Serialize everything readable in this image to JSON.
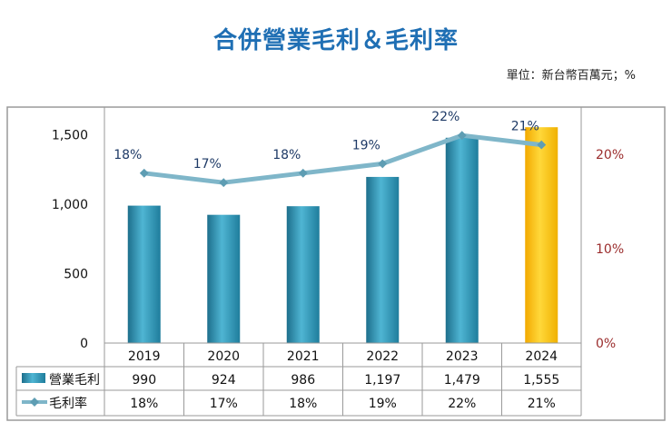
{
  "title": "合併營業毛利＆毛利率",
  "unit": "單位：新台幣百萬元；%",
  "chart_data": {
    "type": "bar",
    "categories": [
      "2019",
      "2020",
      "2021",
      "2022",
      "2023",
      "2024"
    ],
    "series": [
      {
        "name": "營業毛利",
        "axis": "left",
        "values": [
          990,
          924,
          986,
          1197,
          1479,
          1555
        ],
        "display": [
          "990",
          "924",
          "986",
          "1,197",
          "1,479",
          "1,555"
        ],
        "color": "#2a8fb0",
        "highlight_color": "#ffc000",
        "highlight_index": 5
      },
      {
        "name": "毛利率",
        "axis": "right",
        "type": "line",
        "values": [
          18,
          17,
          18,
          19,
          22,
          21
        ],
        "display": [
          "18%",
          "17%",
          "18%",
          "19%",
          "22%",
          "21%"
        ],
        "color": "#7fb6c9"
      }
    ],
    "left_axis": {
      "ylim": [
        0,
        1700
      ],
      "ticks": [
        0,
        500,
        1000,
        1500
      ],
      "tick_labels": [
        "0",
        "500",
        "1,000",
        "1,500"
      ]
    },
    "right_axis": {
      "ylim": [
        0,
        25
      ],
      "ticks": [
        0,
        10,
        20
      ],
      "tick_labels": [
        "0%",
        "10%",
        "20%"
      ],
      "color": "#9b2d2d"
    },
    "table": true
  }
}
